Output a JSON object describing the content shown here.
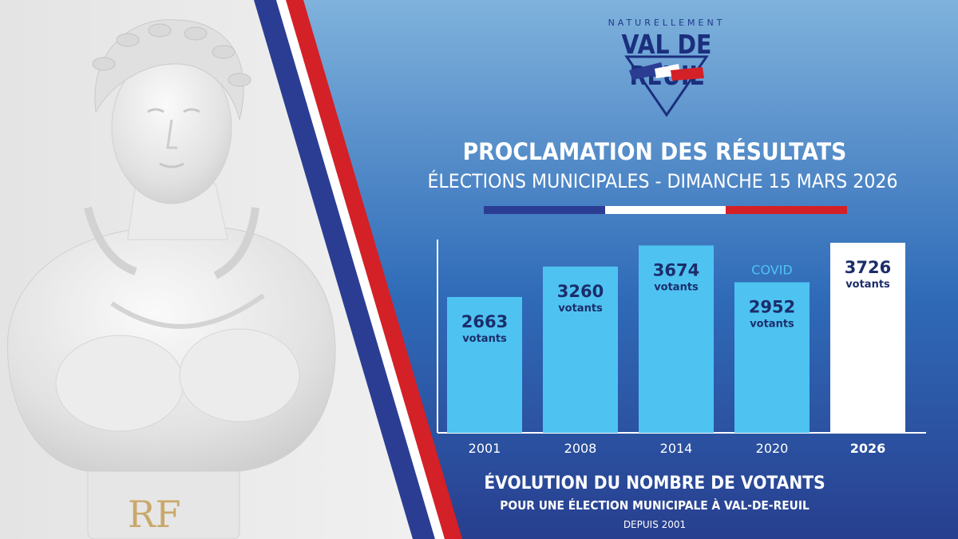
{
  "logo": {
    "tagline": "NATURELLEMENT",
    "name": "VAL DE REUIL"
  },
  "header": {
    "title": "PROCLAMATION DES RÉSULTATS",
    "subtitle": "ÉLECTIONS MUNICIPALES - DIMANCHE 15 MARS 2026"
  },
  "photo": {
    "monogram": "RF"
  },
  "colors": {
    "panel_top": "#7fb2dc",
    "panel_mid": "#2f6bb8",
    "panel_bottom": "#283f8f",
    "bar": "#4ec3f2",
    "bar_highlight": "#ffffff",
    "value_text": "#1b2d6b",
    "flag_blue": "#2b3d93",
    "flag_white": "#ffffff",
    "flag_red": "#d42027"
  },
  "chart_data": {
    "type": "bar",
    "categories": [
      "2001",
      "2008",
      "2014",
      "2020",
      "2026"
    ],
    "values": [
      2663,
      3260,
      3674,
      2952,
      3726
    ],
    "value_labels": [
      "2663",
      "3260",
      "3674",
      "2952",
      "3726"
    ],
    "unit_label": "votants",
    "annotations": [
      {
        "category": "2020",
        "text": "COVID"
      }
    ],
    "highlight_category": "2026",
    "ylim": [
      0,
      3790
    ],
    "grid": false,
    "legend": "none"
  },
  "footer": {
    "title": "ÉVOLUTION DU NOMBRE DE VOTANTS",
    "subtitle": "POUR UNE ÉLECTION MUNICIPALE À VAL-DE-REUIL",
    "since": "DEPUIS 2001"
  }
}
